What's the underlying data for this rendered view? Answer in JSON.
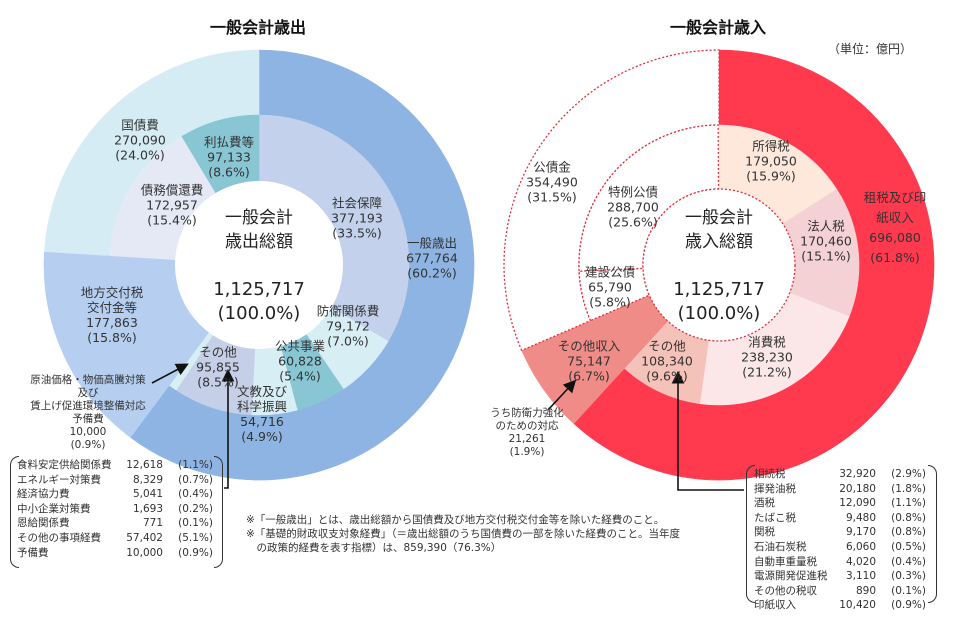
{
  "unit_label": "（単位：億円）",
  "chart_data": [
    {
      "type": "pie",
      "style": "nested-donut",
      "title": "一般会計歳出",
      "center": {
        "line1": "一般会計",
        "line2": "歳出総額",
        "total": 1125717,
        "percent": 100.0
      },
      "outer": [
        {
          "label": "一般歳出",
          "value": 677764,
          "percent": 60.2,
          "color": "#8db4e3"
        },
        {
          "label": "地方交付税\n交付金等",
          "value": 177863,
          "percent": 15.8,
          "color": "#b6cff0"
        },
        {
          "label": "国債費",
          "value": 270090,
          "percent": 24.0,
          "color": "#d6ecf4"
        }
      ],
      "inner": [
        {
          "label": "社会保障",
          "value": 377193,
          "percent": 33.5,
          "color": "#c3d1ec"
        },
        {
          "label": "防衛関係費",
          "value": 79172,
          "percent": 7.0,
          "color": "#d8eef5"
        },
        {
          "label": "公共事業",
          "value": 60828,
          "percent": 5.4,
          "color": "#89c6d3"
        },
        {
          "label": "文教及び\n科学振興",
          "value": 54716,
          "percent": 4.9,
          "color": "#d8eef5"
        },
        {
          "label": "その他",
          "value": 95855,
          "percent": 8.5,
          "color": "#c6cfe8"
        },
        {
          "label": "原油価格・物価高騰対策\n及び\n賃上げ促進環境整備対応\n予備費",
          "value": 10000,
          "percent": 0.9,
          "color": "#d8eef5"
        },
        {
          "label": "地方交付税交付金等",
          "value": 177863,
          "percent": 15.8,
          "color": "#b6cff0",
          "merged_with_outer": true
        },
        {
          "label": "債務償還費",
          "value": 172957,
          "percent": 15.4,
          "color": "#e4e9f5"
        },
        {
          "label": "利払費等",
          "value": 97133,
          "percent": 8.6,
          "color": "#89c6d3"
        }
      ],
      "breakdown_of": "その他",
      "breakdown": [
        {
          "label": "食料安定供給関係費",
          "value": "12,618",
          "percent": "(1.1%)"
        },
        {
          "label": "エネルギー対策費",
          "value": "8,329",
          "percent": "(0.7%)"
        },
        {
          "label": "経済協力費",
          "value": "5,041",
          "percent": "(0.4%)"
        },
        {
          "label": "中小企業対策費",
          "value": "1,693",
          "percent": "(0.2%)"
        },
        {
          "label": "恩給関係費",
          "value": "771",
          "percent": "(0.1%)"
        },
        {
          "label": "その他の事項経費",
          "value": "57,402",
          "percent": "(5.1%)"
        },
        {
          "label": "予備費",
          "value": "10,000",
          "percent": "(0.9%)"
        }
      ]
    },
    {
      "type": "pie",
      "style": "nested-donut",
      "title": "一般会計歳入",
      "center": {
        "line1": "一般会計",
        "line2": "歳入総額",
        "total": 1125717,
        "percent": 100.0
      },
      "outer": [
        {
          "label": "租税及び印紙収入",
          "value": 696080,
          "percent": 61.8,
          "color": "#ff3a4f"
        },
        {
          "label": "その他収入",
          "value": 75147,
          "percent": 6.7,
          "color": "#f08c87"
        },
        {
          "label": "公債金",
          "value": 354490,
          "percent": 31.5,
          "color": "#ffffff",
          "dashed": true
        }
      ],
      "inner": [
        {
          "label": "所得税",
          "value": 179050,
          "percent": 15.9,
          "color": "#fde8db"
        },
        {
          "label": "法人税",
          "value": 170460,
          "percent": 15.1,
          "color": "#f4d1d4"
        },
        {
          "label": "消費税",
          "value": 238230,
          "percent": 21.2,
          "color": "#fbe6e8"
        },
        {
          "label": "その他",
          "value": 108340,
          "percent": 9.6,
          "color": "#f5c2b9"
        },
        {
          "label": "その他収入",
          "value": 75147,
          "percent": 6.7,
          "color": "#f08c87",
          "merged_with_outer": true
        },
        {
          "label": "建設公債",
          "value": 65790,
          "percent": 5.8,
          "color": "#ffffff",
          "dashed": true
        },
        {
          "label": "特例公債",
          "value": 288700,
          "percent": 25.6,
          "color": "#ffffff",
          "dashed": true
        }
      ],
      "callout": {
        "label": "うち防衛力強化\nのための対応",
        "value": 21261,
        "percent": 1.9
      },
      "breakdown_of": "その他",
      "breakdown": [
        {
          "label": "相続税",
          "value": "32,920",
          "percent": "(2.9%)"
        },
        {
          "label": "揮発油税",
          "value": "20,180",
          "percent": "(1.8%)"
        },
        {
          "label": "酒税",
          "value": "12,090",
          "percent": "(1.1%)"
        },
        {
          "label": "たばこ税",
          "value": "9,480",
          "percent": "(0.8%)"
        },
        {
          "label": "関税",
          "value": "9,170",
          "percent": "(0.8%)"
        },
        {
          "label": "石油石炭税",
          "value": "6,060",
          "percent": "(0.5%)"
        },
        {
          "label": "自動車重量税",
          "value": "4,020",
          "percent": "(0.4%)"
        },
        {
          "label": "電源開発促進税",
          "value": "3,110",
          "percent": "(0.3%)"
        },
        {
          "label": "その他の税収",
          "value": "890",
          "percent": "(0.1%)"
        },
        {
          "label": "印紙収入",
          "value": "10,420",
          "percent": "(0.9%)"
        }
      ]
    }
  ],
  "notes": [
    "※「一般歳出」とは、歳出総額から国債費及び地方交付税交付金等を除いた経費のこと。",
    "※「基礎的財政収支対象経費」（＝歳出総額のうち国債費の一部を除いた経費のこと。当年度\n　の政策的経費を表す指標）は、859,390（76.3%）"
  ]
}
